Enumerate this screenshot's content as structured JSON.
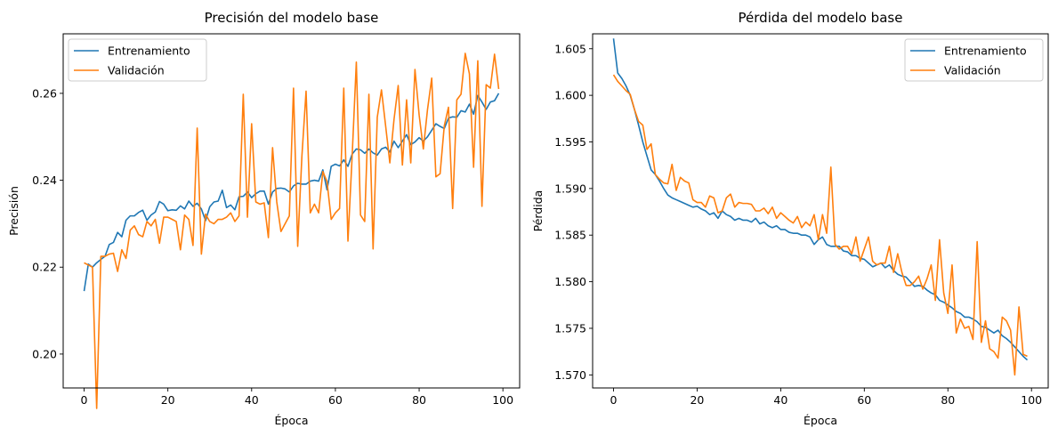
{
  "colors": {
    "train": "#1f77b4",
    "val": "#ff7f0e",
    "axis": "#000000"
  },
  "chart_data": [
    {
      "type": "line",
      "title": "Precisión del modelo base",
      "xlabel": "Época",
      "ylabel": "Precisión",
      "xlim": [
        -5,
        104
      ],
      "ylim": [
        0.1922,
        0.2737
      ],
      "xticks": [
        0,
        20,
        40,
        60,
        80,
        100
      ],
      "yticks": [
        0.2,
        0.22,
        0.24,
        0.26
      ],
      "ytick_labels": [
        "0.20",
        "0.22",
        "0.24",
        "0.26"
      ],
      "legend_position": "upper left",
      "grid": false,
      "x": [
        0,
        1,
        2,
        3,
        4,
        5,
        6,
        7,
        8,
        9,
        10,
        11,
        12,
        13,
        14,
        15,
        16,
        17,
        18,
        19,
        20,
        21,
        22,
        23,
        24,
        25,
        26,
        27,
        28,
        29,
        30,
        31,
        32,
        33,
        34,
        35,
        36,
        37,
        38,
        39,
        40,
        41,
        42,
        43,
        44,
        45,
        46,
        47,
        48,
        49,
        50,
        51,
        52,
        53,
        54,
        55,
        56,
        57,
        58,
        59,
        60,
        61,
        62,
        63,
        64,
        65,
        66,
        67,
        68,
        69,
        70,
        71,
        72,
        73,
        74,
        75,
        76,
        77,
        78,
        79,
        80,
        81,
        82,
        83,
        84,
        85,
        86,
        87,
        88,
        89,
        90,
        91,
        92,
        93,
        94,
        95,
        96,
        97,
        98,
        99
      ],
      "series": [
        {
          "name": "Entrenamiento",
          "color_key": "train",
          "values": [
            0.2145,
            0.2207,
            0.22,
            0.221,
            0.2218,
            0.2225,
            0.2252,
            0.2257,
            0.228,
            0.227,
            0.2308,
            0.2318,
            0.2318,
            0.2326,
            0.2331,
            0.2308,
            0.232,
            0.2327,
            0.2351,
            0.2345,
            0.233,
            0.2332,
            0.2331,
            0.2341,
            0.2334,
            0.2352,
            0.234,
            0.2347,
            0.2334,
            0.2307,
            0.2339,
            0.235,
            0.2352,
            0.2377,
            0.2337,
            0.2343,
            0.2332,
            0.2362,
            0.2363,
            0.2373,
            0.236,
            0.2369,
            0.2375,
            0.2375,
            0.2345,
            0.2373,
            0.2381,
            0.2382,
            0.238,
            0.2373,
            0.2387,
            0.2393,
            0.2391,
            0.2391,
            0.2398,
            0.24,
            0.2398,
            0.2424,
            0.2378,
            0.2432,
            0.2437,
            0.2433,
            0.2447,
            0.2432,
            0.246,
            0.2472,
            0.247,
            0.2462,
            0.2472,
            0.2463,
            0.2458,
            0.2472,
            0.2476,
            0.2465,
            0.249,
            0.2475,
            0.249,
            0.2505,
            0.2482,
            0.2488,
            0.2498,
            0.249,
            0.25,
            0.2515,
            0.253,
            0.2524,
            0.2519,
            0.2543,
            0.2546,
            0.2545,
            0.256,
            0.2557,
            0.2575,
            0.2552,
            0.2595,
            0.258,
            0.2563,
            0.258,
            0.2583,
            0.26
          ]
        },
        {
          "name": "Validación",
          "color_key": "val",
          "values": [
            0.221,
            0.2205,
            0.22,
            0.1875,
            0.2225,
            0.2225,
            0.223,
            0.2232,
            0.219,
            0.224,
            0.222,
            0.2285,
            0.2295,
            0.2275,
            0.227,
            0.2305,
            0.2295,
            0.231,
            0.2255,
            0.2315,
            0.2315,
            0.231,
            0.2305,
            0.224,
            0.232,
            0.231,
            0.225,
            0.252,
            0.223,
            0.2322,
            0.2305,
            0.23,
            0.231,
            0.231,
            0.2315,
            0.2325,
            0.2305,
            0.2318,
            0.2598,
            0.2315,
            0.253,
            0.235,
            0.2345,
            0.2348,
            0.2268,
            0.2475,
            0.235,
            0.2282,
            0.23,
            0.2318,
            0.2612,
            0.2248,
            0.2455,
            0.2605,
            0.2325,
            0.2345,
            0.2325,
            0.242,
            0.2397,
            0.231,
            0.2325,
            0.2335,
            0.2612,
            0.226,
            0.2455,
            0.2672,
            0.232,
            0.2305,
            0.2598,
            0.2242,
            0.2545,
            0.2608,
            0.2525,
            0.244,
            0.254,
            0.2618,
            0.2435,
            0.2585,
            0.244,
            0.2655,
            0.255,
            0.2472,
            0.2563,
            0.2635,
            0.2408,
            0.2415,
            0.2525,
            0.2568,
            0.2335,
            0.2585,
            0.2598,
            0.2692,
            0.2645,
            0.243,
            0.2675,
            0.234,
            0.262,
            0.2612,
            0.269,
            0.261
          ]
        }
      ]
    },
    {
      "type": "line",
      "title": "Pérdida del modelo base",
      "xlabel": "Época",
      "ylabel": "Pérdida",
      "xlim": [
        -5,
        104
      ],
      "ylim": [
        1.5686,
        1.6066
      ],
      "xticks": [
        0,
        20,
        40,
        60,
        80,
        100
      ],
      "yticks": [
        1.57,
        1.575,
        1.58,
        1.585,
        1.59,
        1.595,
        1.6,
        1.605
      ],
      "ytick_labels": [
        "1.570",
        "1.575",
        "1.580",
        "1.585",
        "1.590",
        "1.595",
        "1.600",
        "1.605"
      ],
      "legend_position": "upper right",
      "grid": false,
      "x": [
        0,
        1,
        2,
        3,
        4,
        5,
        6,
        7,
        8,
        9,
        10,
        11,
        12,
        13,
        14,
        15,
        16,
        17,
        18,
        19,
        20,
        21,
        22,
        23,
        24,
        25,
        26,
        27,
        28,
        29,
        30,
        31,
        32,
        33,
        34,
        35,
        36,
        37,
        38,
        39,
        40,
        41,
        42,
        43,
        44,
        45,
        46,
        47,
        48,
        49,
        50,
        51,
        52,
        53,
        54,
        55,
        56,
        57,
        58,
        59,
        60,
        61,
        62,
        63,
        64,
        65,
        66,
        67,
        68,
        69,
        70,
        71,
        72,
        73,
        74,
        75,
        76,
        77,
        78,
        79,
        80,
        81,
        82,
        83,
        84,
        85,
        86,
        87,
        88,
        89,
        90,
        91,
        92,
        93,
        94,
        95,
        96,
        97,
        98,
        99
      ],
      "series": [
        {
          "name": "Entrenamiento",
          "color_key": "train",
          "values": [
            1.6061,
            1.6024,
            1.6018,
            1.601,
            1.6,
            1.5985,
            1.5968,
            1.595,
            1.5935,
            1.592,
            1.5915,
            1.5908,
            1.59,
            1.5893,
            1.589,
            1.5888,
            1.5886,
            1.5884,
            1.5882,
            1.588,
            1.5881,
            1.5878,
            1.5876,
            1.5872,
            1.5874,
            1.5868,
            1.5876,
            1.5872,
            1.587,
            1.5866,
            1.5868,
            1.5866,
            1.5866,
            1.5864,
            1.5868,
            1.5862,
            1.5864,
            1.586,
            1.5858,
            1.586,
            1.5856,
            1.5856,
            1.5853,
            1.5852,
            1.5852,
            1.585,
            1.585,
            1.5848,
            1.584,
            1.5845,
            1.5848,
            1.584,
            1.5838,
            1.5838,
            1.5838,
            1.5833,
            1.5832,
            1.5828,
            1.5828,
            1.5825,
            1.5824,
            1.582,
            1.5816,
            1.5818,
            1.582,
            1.5815,
            1.5818,
            1.5812,
            1.5808,
            1.5806,
            1.5805,
            1.58,
            1.5795,
            1.5796,
            1.5795,
            1.5791,
            1.5788,
            1.5786,
            1.578,
            1.5778,
            1.5775,
            1.5772,
            1.5768,
            1.5766,
            1.5762,
            1.5762,
            1.576,
            1.5757,
            1.5752,
            1.5751,
            1.5748,
            1.5745,
            1.5748,
            1.5742,
            1.5739,
            1.5735,
            1.573,
            1.5725,
            1.572,
            1.5716
          ]
        },
        {
          "name": "Validación",
          "color_key": "val",
          "values": [
            1.6022,
            1.6015,
            1.601,
            1.6005,
            1.6001,
            1.5985,
            1.5972,
            1.5968,
            1.5942,
            1.5948,
            1.5915,
            1.591,
            1.5906,
            1.5905,
            1.5926,
            1.5898,
            1.5912,
            1.5908,
            1.5906,
            1.5888,
            1.5885,
            1.5885,
            1.588,
            1.5892,
            1.589,
            1.5874,
            1.5876,
            1.589,
            1.5894,
            1.588,
            1.5885,
            1.5884,
            1.5884,
            1.5883,
            1.5876,
            1.5876,
            1.5879,
            1.5873,
            1.588,
            1.5868,
            1.5874,
            1.587,
            1.5866,
            1.5863,
            1.587,
            1.5858,
            1.5864,
            1.586,
            1.5872,
            1.5845,
            1.5872,
            1.5852,
            1.5923,
            1.584,
            1.5835,
            1.5838,
            1.5838,
            1.583,
            1.5848,
            1.5822,
            1.5835,
            1.5848,
            1.5822,
            1.5818,
            1.582,
            1.582,
            1.5838,
            1.581,
            1.583,
            1.581,
            1.5796,
            1.5796,
            1.58,
            1.5806,
            1.5792,
            1.5803,
            1.5818,
            1.578,
            1.5845,
            1.5788,
            1.5766,
            1.5818,
            1.5745,
            1.576,
            1.575,
            1.5752,
            1.5738,
            1.5843,
            1.5735,
            1.5758,
            1.5728,
            1.5725,
            1.5718,
            1.5762,
            1.5758,
            1.5748,
            1.57,
            1.5773,
            1.5722,
            1.572
          ]
        }
      ]
    }
  ]
}
